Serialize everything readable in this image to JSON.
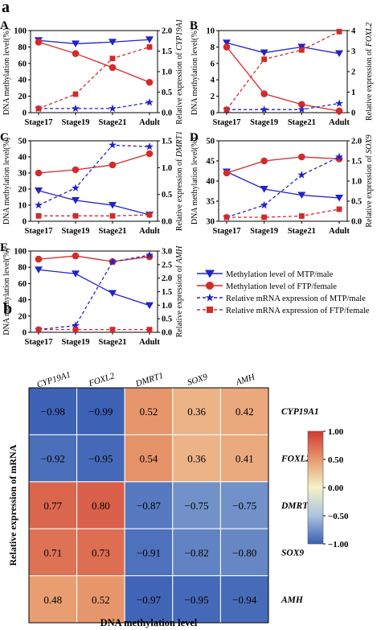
{
  "panel_letters": {
    "a": "a",
    "b": "b"
  },
  "colors": {
    "methylation": "#2323c8",
    "expression": "#d42a2a"
  },
  "legend": {
    "entries": [
      "Methylation level of MTP/male",
      "Methylation level of FTP/female",
      "Relative mRNA expression of MTP/male",
      "Relative mRNA expression of FTP/female"
    ]
  },
  "chart_data": [
    {
      "type": "line",
      "panel": "A",
      "categories": [
        "Stage17",
        "Stage19",
        "Stage21",
        "Adult"
      ],
      "ylabel_left": "DNA methylation level(%)",
      "ylabel_right_prefix": "Relative expression of ",
      "gene": "CYP19A1",
      "ylim_left": [
        0,
        100
      ],
      "yticks_left": [
        0,
        20,
        40,
        60,
        80,
        100
      ],
      "ylim_right": [
        0,
        2.0
      ],
      "yticks_right": [
        "0.0",
        "0.5",
        "1.0",
        "1.5",
        "2.0"
      ],
      "series": [
        {
          "values": [
            88,
            84,
            86,
            89
          ],
          "axis": "left",
          "color": "#2323c8",
          "marker": "triangle-down",
          "dash": false
        },
        {
          "values": [
            86,
            72,
            55,
            37
          ],
          "axis": "left",
          "color": "#d42a2a",
          "marker": "circle",
          "dash": false
        },
        {
          "values": [
            0.1,
            0.1,
            0.1,
            0.25
          ],
          "axis": "right",
          "color": "#2323c8",
          "marker": "star",
          "dash": true
        },
        {
          "values": [
            0.1,
            0.45,
            1.32,
            1.6
          ],
          "axis": "right",
          "color": "#d42a2a",
          "marker": "square",
          "dash": true
        }
      ]
    },
    {
      "type": "line",
      "panel": "B",
      "categories": [
        "Stage17",
        "Stage19",
        "Stage21",
        "Adult"
      ],
      "ylabel_left": "DNA methylation level(%)",
      "ylabel_right_prefix": "Relative expression of ",
      "gene": "FOXL2",
      "ylim_left": [
        0,
        10
      ],
      "yticks_left": [
        0,
        2,
        4,
        6,
        8,
        10
      ],
      "ylim_right": [
        0,
        4
      ],
      "yticks_right": [
        "0",
        "1",
        "2",
        "3",
        "4"
      ],
      "series": [
        {
          "values": [
            8.5,
            7.3,
            8.0,
            7.2
          ],
          "axis": "left",
          "color": "#2323c8",
          "marker": "triangle-down",
          "dash": false
        },
        {
          "values": [
            8.0,
            2.3,
            1.0,
            0.2
          ],
          "axis": "left",
          "color": "#d42a2a",
          "marker": "circle",
          "dash": false
        },
        {
          "values": [
            0.15,
            0.15,
            0.15,
            0.45
          ],
          "axis": "right",
          "color": "#2323c8",
          "marker": "star",
          "dash": true
        },
        {
          "values": [
            0.15,
            2.6,
            3.05,
            3.95
          ],
          "axis": "right",
          "color": "#d42a2a",
          "marker": "square",
          "dash": true
        }
      ]
    },
    {
      "type": "line",
      "panel": "C",
      "categories": [
        "Stage17",
        "Stage19",
        "Stage21",
        "Adult"
      ],
      "ylabel_left": "DNA methylation level(%)",
      "ylabel_right_prefix": "Relative expression of ",
      "gene": "DMRT1",
      "ylim_left": [
        0,
        50
      ],
      "yticks_left": [
        0,
        10,
        20,
        30,
        40,
        50
      ],
      "ylim_right": [
        0,
        1.5
      ],
      "yticks_right": [
        "0.0",
        "0.5",
        "1.0",
        "1.5"
      ],
      "series": [
        {
          "values": [
            19,
            13,
            10,
            4
          ],
          "axis": "left",
          "color": "#2323c8",
          "marker": "triangle-down",
          "dash": false
        },
        {
          "values": [
            30,
            32,
            35,
            42
          ],
          "axis": "left",
          "color": "#d42a2a",
          "marker": "circle",
          "dash": false
        },
        {
          "values": [
            0.3,
            0.62,
            1.42,
            1.39
          ],
          "axis": "right",
          "color": "#2323c8",
          "marker": "star",
          "dash": true
        },
        {
          "values": [
            0.1,
            0.1,
            0.1,
            0.12
          ],
          "axis": "right",
          "color": "#d42a2a",
          "marker": "square",
          "dash": true
        }
      ]
    },
    {
      "type": "line",
      "panel": "D",
      "categories": [
        "Stage17",
        "Stage19",
        "Stage21",
        "Adult"
      ],
      "ylabel_left": "DNA methylation level(%)",
      "ylabel_right_prefix": "Relative expression of ",
      "gene": "SOX9",
      "ylim_left": [
        30,
        50
      ],
      "yticks_left": [
        30,
        35,
        40,
        45,
        50
      ],
      "ylim_right": [
        0,
        2.0
      ],
      "yticks_right": [
        "0.0",
        "0.5",
        "1.0",
        "1.5",
        "2.0"
      ],
      "series": [
        {
          "values": [
            42.3,
            38,
            36.5,
            35.8
          ],
          "axis": "left",
          "color": "#2323c8",
          "marker": "triangle-down",
          "dash": false
        },
        {
          "values": [
            42,
            45,
            46,
            45.5
          ],
          "axis": "left",
          "color": "#d42a2a",
          "marker": "circle",
          "dash": false
        },
        {
          "values": [
            0.1,
            0.4,
            1.15,
            1.6
          ],
          "axis": "right",
          "color": "#2323c8",
          "marker": "star",
          "dash": true
        },
        {
          "values": [
            0.1,
            0.1,
            0.13,
            0.3
          ],
          "axis": "right",
          "color": "#d42a2a",
          "marker": "square",
          "dash": true
        }
      ]
    },
    {
      "type": "line",
      "panel": "E",
      "categories": [
        "Stage17",
        "Stage19",
        "Stage21",
        "Adult"
      ],
      "ylabel_left": "DNA methylation level(%)",
      "ylabel_right_prefix": "Relative expression of ",
      "gene": "AMH",
      "ylim_left": [
        0,
        100
      ],
      "yticks_left": [
        0,
        20,
        40,
        60,
        80,
        100
      ],
      "ylim_right": [
        0,
        3.0
      ],
      "yticks_right": [
        "0.0",
        "0.5",
        "1.0",
        "1.5",
        "2.0",
        "2.5",
        "3.0"
      ],
      "series": [
        {
          "values": [
            77,
            72,
            48,
            33
          ],
          "axis": "left",
          "color": "#2323c8",
          "marker": "triangle-down",
          "dash": false
        },
        {
          "values": [
            90,
            94,
            87,
            93
          ],
          "axis": "left",
          "color": "#d42a2a",
          "marker": "circle",
          "dash": false
        },
        {
          "values": [
            0.1,
            0.25,
            2.6,
            2.85
          ],
          "axis": "right",
          "color": "#2323c8",
          "marker": "star",
          "dash": true
        },
        {
          "values": [
            0.1,
            0.1,
            0.1,
            0.1
          ],
          "axis": "right",
          "color": "#d42a2a",
          "marker": "square",
          "dash": true
        }
      ]
    },
    {
      "type": "heatmap",
      "panel": "b",
      "columns": [
        "CYP19A1",
        "FOXL2",
        "DMRT1",
        "SOX9",
        "AMH"
      ],
      "rows": [
        "CYP19A1",
        "FOXL2",
        "DMRT1",
        "SOX9",
        "AMH"
      ],
      "values": [
        [
          -0.98,
          -0.99,
          0.52,
          0.36,
          0.42
        ],
        [
          -0.92,
          -0.95,
          0.54,
          0.36,
          0.41
        ],
        [
          0.77,
          0.8,
          -0.87,
          -0.75,
          -0.75
        ],
        [
          0.71,
          0.73,
          -0.91,
          -0.82,
          -0.8
        ],
        [
          0.48,
          0.52,
          -0.97,
          -0.95,
          -0.94
        ]
      ],
      "labels": [
        [
          "−0.98",
          "−0.99",
          "0.52",
          "0.36",
          "0.42"
        ],
        [
          "−0.92",
          "−0.95",
          "0.54",
          "0.36",
          "0.41"
        ],
        [
          "0.77",
          "0.80",
          "−0.87",
          "−0.75",
          "−0.75"
        ],
        [
          "0.71",
          "0.73",
          "−0.91",
          "−0.82",
          "−0.80"
        ],
        [
          "0.48",
          "0.52",
          "−0.97",
          "−0.95",
          "−0.94"
        ]
      ],
      "xlabel": "DNA methylation level",
      "ylabel": "Relative expression of  mRNA",
      "colorbar_ticks": [
        "1.00",
        "0.50",
        "0.00",
        "−0.50",
        "−1.00"
      ],
      "colorbar_range": [
        -1,
        1
      ],
      "colorscale": [
        "#3a5fb4",
        "#a9c3dd",
        "#f6f2c8",
        "#e89a6e",
        "#cf3a32"
      ]
    }
  ]
}
